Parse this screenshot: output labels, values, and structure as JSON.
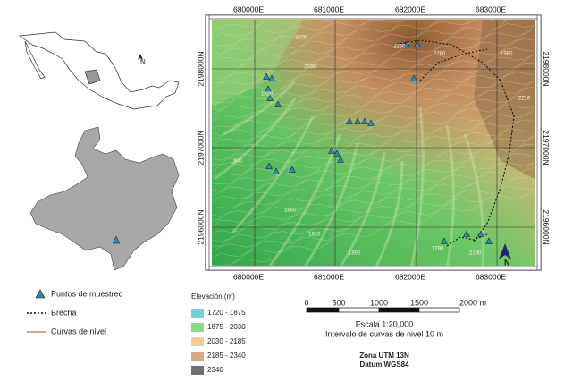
{
  "map": {
    "grid_labels": {
      "easting": [
        "680000E",
        "681000E",
        "682000E",
        "683000E"
      ],
      "northing": [
        "2198000N",
        "2197000N",
        "2196000N"
      ]
    },
    "north_label": "N",
    "contour_labels": [
      "2030",
      "2070",
      "2260",
      "2280",
      "1980",
      "1920",
      "1840",
      "1850",
      "1890",
      "1820",
      "1790",
      "2190",
      "2210"
    ]
  },
  "legend": {
    "items": [
      "Puntos de muestreo",
      "Brecha",
      "Curvas de nivel"
    ]
  },
  "elevation_legend": {
    "title": "Elevación (m)",
    "classes": [
      "1720 - 1875",
      "1875 - 2030",
      "2030 - 2185",
      "2185 - 2340",
      "2340"
    ]
  },
  "scale": {
    "ticks": [
      "0",
      "500",
      "1000",
      "1500",
      "2000 m"
    ],
    "text": "Escala 1:20,000",
    "interval": "Intervalo de curvas de nivel 10 m"
  },
  "datum": {
    "zone": "Zona UTM 13N",
    "datum": "Datum WGS84"
  }
}
